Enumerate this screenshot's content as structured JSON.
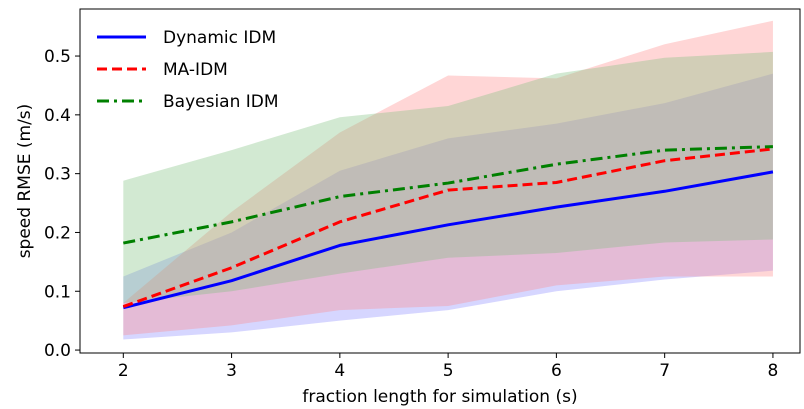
{
  "chart_data": {
    "type": "line",
    "title": "",
    "xlabel": "fraction length for simulation (s)",
    "ylabel": "speed RMSE (m/s)",
    "x": [
      2,
      3,
      4,
      5,
      6,
      7,
      8
    ],
    "xlim": [
      1.6,
      8.25
    ],
    "ylim": [
      -0.005,
      0.58
    ],
    "xticks": [
      "2",
      "3",
      "4",
      "5",
      "6",
      "7",
      "8"
    ],
    "yticks": [
      "0.0",
      "0.1",
      "0.2",
      "0.3",
      "0.4",
      "0.5"
    ],
    "ytick_values": [
      0.0,
      0.1,
      0.2,
      0.3,
      0.4,
      0.5
    ],
    "grid": false,
    "legend_position": "top-left",
    "series": [
      {
        "name": "Dynamic IDM",
        "values": [
          0.072,
          0.118,
          0.178,
          0.213,
          0.243,
          0.27,
          0.303
        ],
        "band_upper": [
          0.125,
          0.2,
          0.305,
          0.36,
          0.385,
          0.42,
          0.47
        ],
        "band_lower": [
          0.018,
          0.03,
          0.05,
          0.068,
          0.1,
          0.12,
          0.135
        ],
        "color": "#0000ff",
        "band_color": "#8a8aff",
        "dash": "solid"
      },
      {
        "name": "MA-IDM",
        "values": [
          0.074,
          0.14,
          0.218,
          0.272,
          0.285,
          0.322,
          0.342
        ],
        "band_upper": [
          0.08,
          0.235,
          0.37,
          0.467,
          0.462,
          0.52,
          0.56
        ],
        "band_lower": [
          0.025,
          0.042,
          0.068,
          0.075,
          0.11,
          0.125,
          0.125
        ],
        "color": "#ff0000",
        "band_color": "#ff8a8a",
        "dash": "dashed"
      },
      {
        "name": "Bayesian IDM",
        "values": [
          0.182,
          0.218,
          0.261,
          0.284,
          0.316,
          0.34,
          0.346
        ],
        "band_upper": [
          0.288,
          0.34,
          0.396,
          0.415,
          0.47,
          0.497,
          0.507
        ],
        "band_lower": [
          0.08,
          0.1,
          0.13,
          0.157,
          0.165,
          0.183,
          0.188
        ],
        "color": "#008000",
        "band_color": "#7fc07f",
        "dash": "dashdot"
      }
    ]
  }
}
